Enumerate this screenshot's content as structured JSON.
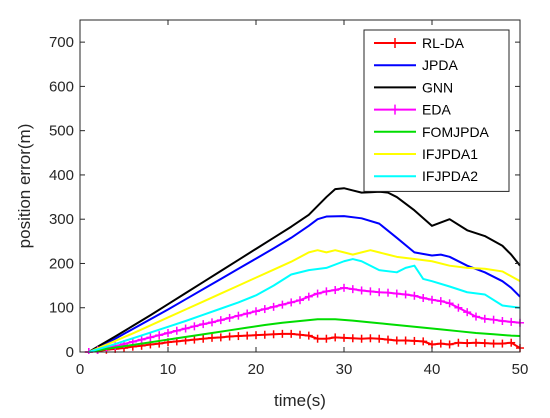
{
  "chart_data": {
    "type": "line",
    "xlabel": "time(s)",
    "ylabel": "position error(m)",
    "xlim": [
      0,
      50
    ],
    "ylim": [
      0,
      750
    ],
    "xticks": [
      0,
      10,
      20,
      30,
      40,
      50
    ],
    "yticks": [
      0,
      100,
      200,
      300,
      400,
      500,
      600,
      700
    ],
    "grid": false,
    "legend_position": "top-right",
    "series": [
      {
        "name": "RL-DA",
        "color": "#ff0000",
        "marker": "plus",
        "x": [
          1,
          2,
          3,
          4,
          5,
          6,
          7,
          8,
          9,
          10,
          11,
          12,
          13,
          14,
          15,
          16,
          17,
          18,
          19,
          20,
          21,
          22,
          23,
          24,
          25,
          26,
          27,
          28,
          29,
          30,
          31,
          32,
          33,
          34,
          35,
          36,
          37,
          38,
          39,
          40,
          41,
          42,
          43,
          44,
          45,
          46,
          47,
          48,
          49,
          50
        ],
        "values": [
          0,
          2,
          5,
          7,
          9,
          12,
          14,
          17,
          19,
          22,
          24,
          26,
          28,
          30,
          32,
          33,
          35,
          36,
          37,
          38,
          39,
          40,
          41,
          41,
          39,
          37,
          30,
          30,
          33,
          32,
          31,
          30,
          31,
          30,
          28,
          26,
          26,
          25,
          24,
          17,
          19,
          17,
          21,
          20,
          21,
          20,
          19,
          19,
          21,
          9
        ]
      },
      {
        "name": "JPDA",
        "color": "#0000ff",
        "marker": "none",
        "x": [
          1,
          2,
          4,
          6,
          8,
          10,
          12,
          14,
          16,
          18,
          20,
          22,
          24,
          26,
          27,
          28,
          30,
          32,
          34,
          36,
          38,
          40,
          41,
          42,
          44,
          46,
          48,
          49,
          50
        ],
        "values": [
          0,
          10,
          30,
          52,
          74,
          96,
          119,
          142,
          165,
          188,
          211,
          234,
          258,
          285,
          300,
          306,
          307,
          302,
          290,
          258,
          225,
          218,
          220,
          215,
          195,
          180,
          160,
          145,
          125
        ]
      },
      {
        "name": "GNN",
        "color": "#000000",
        "marker": "none",
        "x": [
          1,
          2,
          4,
          6,
          8,
          10,
          12,
          14,
          16,
          18,
          20,
          22,
          24,
          26,
          28,
          29,
          30,
          31,
          32,
          33,
          34,
          35,
          36,
          38,
          40,
          42,
          44,
          46,
          48,
          49,
          50
        ],
        "values": [
          0,
          12,
          35,
          59,
          83,
          108,
          133,
          158,
          183,
          208,
          233,
          258,
          283,
          310,
          350,
          368,
          370,
          365,
          360,
          361,
          362,
          360,
          350,
          320,
          285,
          300,
          275,
          262,
          240,
          220,
          195
        ]
      },
      {
        "name": "EDA",
        "color": "#ff00ff",
        "marker": "plus",
        "x": [
          1,
          2,
          3,
          4,
          5,
          6,
          7,
          8,
          9,
          10,
          11,
          12,
          13,
          14,
          15,
          16,
          17,
          18,
          19,
          20,
          21,
          22,
          23,
          24,
          25,
          26,
          27,
          28,
          29,
          30,
          31,
          32,
          33,
          34,
          35,
          36,
          37,
          38,
          39,
          40,
          41,
          42,
          43,
          44,
          45,
          46,
          47,
          48,
          49,
          50
        ],
        "values": [
          0,
          4,
          8,
          13,
          18,
          23,
          28,
          33,
          38,
          43,
          48,
          53,
          58,
          63,
          67,
          72,
          77,
          82,
          87,
          92,
          97,
          102,
          107,
          112,
          117,
          125,
          132,
          137,
          140,
          145,
          142,
          139,
          137,
          135,
          134,
          132,
          130,
          127,
          122,
          118,
          115,
          110,
          100,
          90,
          80,
          75,
          73,
          70,
          68,
          66
        ]
      },
      {
        "name": "FOMJPDA",
        "color": "#00dd00",
        "marker": "none",
        "x": [
          1,
          3,
          5,
          7,
          9,
          11,
          13,
          15,
          17,
          19,
          21,
          23,
          25,
          27,
          29,
          31,
          33,
          35,
          37,
          39,
          41,
          43,
          45,
          47,
          49,
          50
        ],
        "values": [
          0,
          7,
          13,
          19,
          25,
          31,
          37,
          43,
          49,
          55,
          61,
          66,
          70,
          74,
          74,
          71,
          67,
          63,
          59,
          55,
          51,
          47,
          43,
          40,
          37,
          36
        ]
      },
      {
        "name": "IFJPDA1",
        "color": "#ffff00",
        "marker": "none",
        "x": [
          1,
          2,
          4,
          6,
          8,
          10,
          12,
          14,
          16,
          18,
          20,
          22,
          24,
          26,
          27,
          28,
          29,
          30,
          31,
          32,
          33,
          34,
          35,
          36,
          38,
          40,
          42,
          44,
          46,
          48,
          50
        ],
        "values": [
          0,
          8,
          25,
          42,
          60,
          78,
          96,
          114,
          132,
          150,
          168,
          186,
          204,
          225,
          230,
          225,
          230,
          225,
          220,
          225,
          230,
          225,
          220,
          215,
          210,
          205,
          195,
          190,
          188,
          182,
          160
        ]
      },
      {
        "name": "IFJPDA2",
        "color": "#00ffff",
        "marker": "none",
        "x": [
          1,
          2,
          4,
          6,
          8,
          10,
          12,
          14,
          16,
          18,
          20,
          22,
          24,
          26,
          28,
          30,
          31,
          32,
          34,
          36,
          37,
          38,
          39,
          40,
          42,
          44,
          46,
          48,
          50
        ],
        "values": [
          0,
          6,
          18,
          31,
          44,
          57,
          70,
          84,
          98,
          112,
          128,
          150,
          175,
          185,
          190,
          205,
          210,
          205,
          185,
          180,
          190,
          195,
          165,
          160,
          148,
          135,
          130,
          105,
          100
        ]
      }
    ]
  }
}
